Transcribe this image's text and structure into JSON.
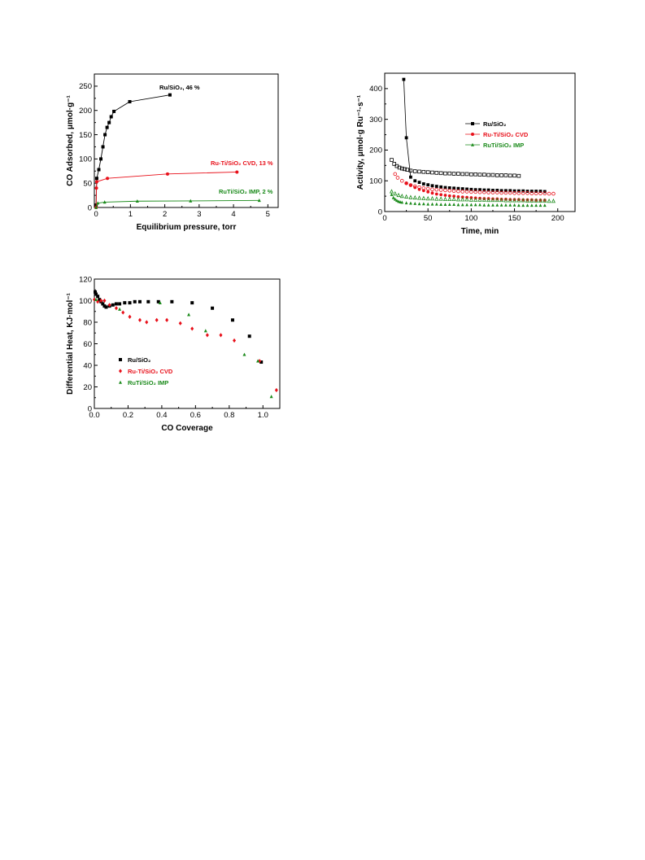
{
  "chart_data": [
    {
      "type": "line",
      "xlabel": "Equilibrium pressure, torr",
      "ylabel": "CO Adsorbed, μmol·g⁻¹",
      "xlim": [
        -0.05,
        5.3
      ],
      "ylim": [
        0,
        275
      ],
      "xticks": [
        0,
        1,
        2,
        3,
        4,
        5
      ],
      "yticks": [
        0,
        50,
        100,
        150,
        200,
        250
      ],
      "grid": false,
      "series": [
        {
          "name": "Ru/SiO₂, 46 %",
          "color": "#000000",
          "marker": "square",
          "x": [
            0.0,
            0.02,
            0.08,
            0.14,
            0.2,
            0.26,
            0.32,
            0.38,
            0.44,
            0.52,
            0.98,
            2.15
          ],
          "y": [
            5,
            60,
            78,
            100,
            125,
            150,
            165,
            175,
            187,
            198,
            218,
            232
          ]
        },
        {
          "name": "Ru-Ti/SiO₂ CVD, 13 %",
          "color": "#e8101a",
          "marker": "circle",
          "x": [
            0.0,
            0.01,
            0.02,
            0.33,
            2.08,
            4.1
          ],
          "y": [
            0,
            40,
            53,
            60,
            69,
            73
          ]
        },
        {
          "name": "RuTi/SiO₂ IMP, 2 %",
          "color": "#1a8a1a",
          "marker": "triangle",
          "x": [
            0.0,
            0.05,
            0.25,
            1.2,
            2.75,
            4.75
          ],
          "y": [
            0,
            9,
            11,
            13,
            13.5,
            14.5
          ]
        }
      ]
    },
    {
      "type": "scatter",
      "xlabel": "Time, min",
      "ylabel": "Activity, μmol·g Ru⁻¹·s⁻¹",
      "xlim": [
        0,
        220
      ],
      "ylim": [
        0,
        450
      ],
      "xticks": [
        0,
        50,
        100,
        150,
        200
      ],
      "yticks": [
        0,
        100,
        200,
        300,
        400
      ],
      "grid": false,
      "legend": "center-right",
      "series": [
        {
          "name": "Ru/SiO₂",
          "color": "#000000",
          "marker": "square",
          "filled": true,
          "x": [
            22,
            25,
            30,
            35,
            40,
            45,
            50,
            55,
            60,
            65,
            70,
            75,
            80,
            85,
            90,
            95,
            100,
            105,
            110,
            115,
            120,
            125,
            130,
            135,
            140,
            145,
            150,
            155,
            160,
            165,
            170,
            175,
            180,
            185
          ],
          "y": [
            430,
            240,
            112,
            100,
            95,
            90,
            87,
            84,
            82,
            80,
            78,
            77,
            76,
            75,
            74,
            73,
            72,
            71,
            71,
            70,
            70,
            69,
            69,
            68,
            68,
            68,
            67,
            67,
            67,
            66,
            66,
            66,
            66,
            65
          ]
        },
        {
          "name": "",
          "color": "#000000",
          "marker": "square",
          "filled": false,
          "x": [
            8,
            11,
            14,
            17,
            20,
            23,
            26,
            30,
            35,
            40,
            45,
            50,
            55,
            60,
            65,
            70,
            75,
            80,
            85,
            90,
            95,
            100,
            105,
            110,
            115,
            120,
            125,
            130,
            135,
            140,
            145,
            150,
            155
          ],
          "y": [
            168,
            155,
            148,
            143,
            140,
            138,
            136,
            133,
            131,
            130,
            129,
            128,
            127,
            126,
            125,
            124,
            124,
            123,
            123,
            122,
            122,
            121,
            121,
            120,
            120,
            119,
            119,
            118,
            118,
            118,
            117,
            117,
            116
          ]
        },
        {
          "name": "Ru-Ti/SiO₂ CVD",
          "color": "#e8101a",
          "marker": "circle",
          "filled": true,
          "x": [
            25,
            30,
            35,
            40,
            45,
            50,
            55,
            60,
            65,
            70,
            75,
            80,
            85,
            90,
            95,
            100,
            105,
            110,
            115,
            120,
            125,
            130,
            135,
            140,
            145,
            150,
            155,
            160,
            165,
            170,
            175,
            180,
            185
          ],
          "y": [
            92,
            85,
            78,
            72,
            68,
            64,
            60,
            57,
            55,
            53,
            51,
            50,
            48,
            47,
            46,
            45,
            44,
            43,
            42,
            42,
            41,
            41,
            40,
            40,
            39,
            39,
            39,
            38,
            38,
            38,
            37,
            37,
            37
          ]
        },
        {
          "name": "",
          "color": "#e8101a",
          "marker": "circle",
          "filled": false,
          "x": [
            12,
            15,
            20,
            25,
            30,
            35,
            40,
            45,
            50,
            55,
            60,
            65,
            70,
            75,
            80,
            85,
            90,
            95,
            100,
            105,
            110,
            115,
            120,
            125,
            130,
            135,
            140,
            145,
            150,
            155,
            160,
            165,
            170,
            175,
            180,
            185,
            190,
            195
          ],
          "y": [
            122,
            110,
            100,
            92,
            86,
            82,
            79,
            76,
            74,
            72,
            71,
            70,
            69,
            68,
            67,
            66,
            65,
            65,
            64,
            64,
            63,
            63,
            62,
            62,
            62,
            61,
            61,
            61,
            60,
            60,
            60,
            60,
            59,
            59,
            59,
            59,
            58,
            58
          ]
        },
        {
          "name": "RuTi/SiO₂ IMP",
          "color": "#1a8a1a",
          "marker": "triangle",
          "filled": true,
          "x": [
            8,
            10,
            12,
            14,
            16,
            18,
            20,
            25,
            30,
            35,
            40,
            45,
            50,
            55,
            60,
            65,
            70,
            75,
            80,
            85,
            90,
            95,
            100,
            105,
            110,
            115,
            120,
            125,
            130,
            135,
            140,
            145,
            150,
            155,
            160,
            165,
            170,
            175,
            180,
            185
          ],
          "y": [
            55,
            45,
            40,
            36,
            33,
            31,
            30,
            28,
            27,
            26,
            25,
            25,
            24,
            24,
            24,
            23,
            23,
            23,
            23,
            22,
            22,
            22,
            22,
            22,
            22,
            21,
            21,
            21,
            21,
            21,
            21,
            21,
            21,
            20,
            20,
            20,
            20,
            20,
            20,
            20
          ]
        },
        {
          "name": "",
          "color": "#1a8a1a",
          "marker": "triangle",
          "filled": false,
          "x": [
            8,
            12,
            16,
            20,
            25,
            30,
            35,
            40,
            45,
            50,
            55,
            60,
            65,
            70,
            75,
            80,
            85,
            90,
            95,
            100,
            105,
            110,
            115,
            120,
            125,
            130,
            135,
            140,
            145,
            150,
            155,
            160,
            165,
            170,
            175,
            180,
            185,
            190,
            195
          ],
          "y": [
            65,
            58,
            53,
            50,
            48,
            46,
            45,
            44,
            43,
            42,
            42,
            41,
            41,
            40,
            40,
            40,
            39,
            39,
            39,
            38,
            38,
            38,
            38,
            37,
            37,
            37,
            37,
            36,
            36,
            36,
            36,
            36,
            35,
            35,
            35,
            35,
            35,
            34,
            34
          ]
        }
      ]
    },
    {
      "type": "scatter",
      "xlabel": "CO Coverage",
      "ylabel": "Differential Heat, KJ·mol⁻¹",
      "xlim": [
        0,
        1.1
      ],
      "ylim": [
        0,
        120
      ],
      "xticks": [
        0.0,
        0.2,
        0.4,
        0.6,
        0.8,
        1.0
      ],
      "yticks": [
        0,
        20,
        40,
        60,
        80,
        100,
        120
      ],
      "grid": false,
      "legend": "lower-left",
      "series": [
        {
          "name": "Ru/SiO₂",
          "color": "#000000",
          "marker": "square",
          "x": [
            0.005,
            0.01,
            0.02,
            0.03,
            0.04,
            0.05,
            0.06,
            0.07,
            0.09,
            0.11,
            0.13,
            0.15,
            0.18,
            0.21,
            0.24,
            0.27,
            0.32,
            0.38,
            0.46,
            0.58,
            0.7,
            0.82,
            0.92,
            0.99
          ],
          "y": [
            108,
            106,
            104,
            101,
            99,
            97,
            95,
            94,
            95,
            96,
            97,
            97,
            98,
            98,
            99,
            99,
            99,
            99,
            99,
            98,
            93,
            82,
            67,
            43
          ]
        },
        {
          "name": "Ru-Ti/SiO₂ CVD",
          "color": "#e8101a",
          "marker": "diamond",
          "x": [
            0.0,
            0.02,
            0.04,
            0.06,
            0.09,
            0.13,
            0.17,
            0.21,
            0.27,
            0.31,
            0.37,
            0.43,
            0.51,
            0.58,
            0.67,
            0.75,
            0.83,
            0.98,
            1.08
          ],
          "y": [
            101,
            99,
            100,
            100,
            96,
            93,
            89,
            85,
            82,
            80,
            82,
            82,
            79,
            74,
            68,
            68,
            63,
            44,
            17
          ]
        },
        {
          "name": "RuTi/SiO₂ IMP",
          "color": "#1a8a1a",
          "marker": "triangle",
          "x": [
            0.01,
            0.15,
            0.39,
            0.56,
            0.66,
            0.89,
            0.97,
            1.05
          ],
          "y": [
            101,
            92,
            98,
            87,
            72,
            50,
            44,
            11
          ]
        }
      ]
    }
  ]
}
